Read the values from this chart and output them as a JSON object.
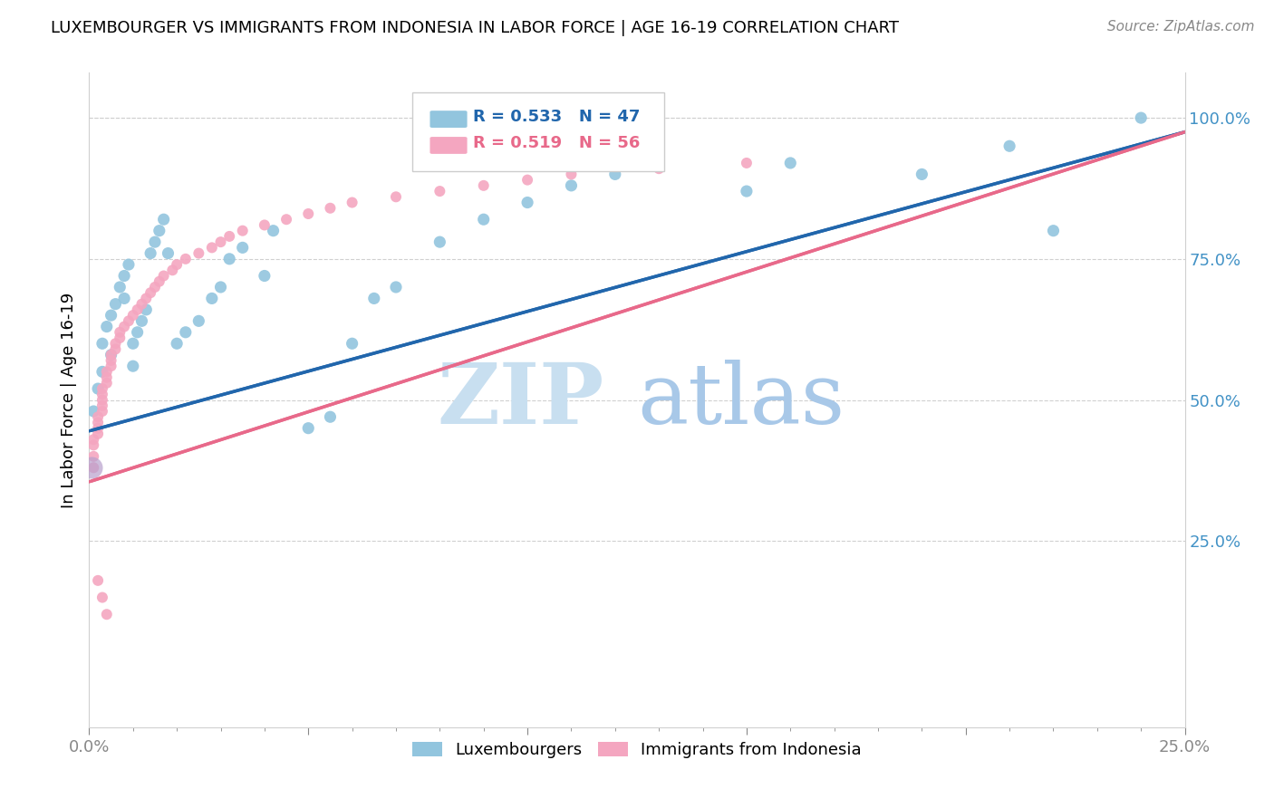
{
  "title": "LUXEMBOURGER VS IMMIGRANTS FROM INDONESIA IN LABOR FORCE | AGE 16-19 CORRELATION CHART",
  "source": "Source: ZipAtlas.com",
  "ylabel_label": "In Labor Force | Age 16-19",
  "legend_label1": "Luxembourgers",
  "legend_label2": "Immigrants from Indonesia",
  "R1": 0.533,
  "N1": 47,
  "R2": 0.519,
  "N2": 56,
  "color_blue": "#92c5de",
  "color_pink": "#f4a6c0",
  "line_blue": "#2166ac",
  "line_pink": "#e8698a",
  "watermark_zip": "ZIP",
  "watermark_atlas": "atlas",
  "watermark_color_zip": "#c8dff0",
  "watermark_color_atlas": "#a8c8e8",
  "xlim": [
    0.0,
    0.25
  ],
  "ylim": [
    -0.08,
    1.08
  ],
  "ytick_vals": [
    0.25,
    0.5,
    0.75,
    1.0
  ],
  "ytick_labels": [
    "25.0%",
    "50.0%",
    "75.0%",
    "100.0%"
  ],
  "xtick_vals": [
    0.0,
    0.05,
    0.1,
    0.15,
    0.2,
    0.25
  ],
  "xtick_labels": [
    "0.0%",
    "",
    "",
    "",
    "",
    "25.0%"
  ],
  "blue_x": [
    0.001,
    0.002,
    0.003,
    0.003,
    0.004,
    0.005,
    0.005,
    0.006,
    0.007,
    0.008,
    0.008,
    0.009,
    0.01,
    0.01,
    0.011,
    0.012,
    0.013,
    0.014,
    0.015,
    0.016,
    0.017,
    0.018,
    0.02,
    0.022,
    0.025,
    0.028,
    0.03,
    0.032,
    0.035,
    0.04,
    0.042,
    0.05,
    0.055,
    0.06,
    0.065,
    0.07,
    0.08,
    0.09,
    0.1,
    0.11,
    0.12,
    0.15,
    0.16,
    0.19,
    0.21,
    0.22,
    0.24
  ],
  "blue_y": [
    0.48,
    0.52,
    0.55,
    0.6,
    0.63,
    0.65,
    0.58,
    0.67,
    0.7,
    0.72,
    0.68,
    0.74,
    0.56,
    0.6,
    0.62,
    0.64,
    0.66,
    0.76,
    0.78,
    0.8,
    0.82,
    0.76,
    0.6,
    0.62,
    0.64,
    0.68,
    0.7,
    0.75,
    0.77,
    0.72,
    0.8,
    0.45,
    0.47,
    0.6,
    0.68,
    0.7,
    0.78,
    0.82,
    0.85,
    0.88,
    0.9,
    0.87,
    0.92,
    0.9,
    0.95,
    0.8,
    1.0
  ],
  "pink_x": [
    0.001,
    0.001,
    0.001,
    0.001,
    0.002,
    0.002,
    0.002,
    0.002,
    0.003,
    0.003,
    0.003,
    0.003,
    0.003,
    0.004,
    0.004,
    0.004,
    0.005,
    0.005,
    0.005,
    0.006,
    0.006,
    0.007,
    0.007,
    0.008,
    0.009,
    0.01,
    0.011,
    0.012,
    0.013,
    0.014,
    0.015,
    0.016,
    0.017,
    0.019,
    0.02,
    0.022,
    0.025,
    0.028,
    0.03,
    0.032,
    0.035,
    0.04,
    0.045,
    0.05,
    0.055,
    0.06,
    0.07,
    0.08,
    0.09,
    0.1,
    0.11,
    0.13,
    0.15,
    0.002,
    0.003,
    0.004
  ],
  "pink_y": [
    0.38,
    0.4,
    0.42,
    0.43,
    0.44,
    0.45,
    0.46,
    0.47,
    0.48,
    0.49,
    0.5,
    0.51,
    0.52,
    0.53,
    0.54,
    0.55,
    0.56,
    0.57,
    0.58,
    0.59,
    0.6,
    0.61,
    0.62,
    0.63,
    0.64,
    0.65,
    0.66,
    0.67,
    0.68,
    0.69,
    0.7,
    0.71,
    0.72,
    0.73,
    0.74,
    0.75,
    0.76,
    0.77,
    0.78,
    0.79,
    0.8,
    0.81,
    0.82,
    0.83,
    0.84,
    0.85,
    0.86,
    0.87,
    0.88,
    0.89,
    0.9,
    0.91,
    0.92,
    0.18,
    0.15,
    0.12
  ],
  "blue_line_x0": 0.0,
  "blue_line_y0": 0.445,
  "blue_line_x1": 0.25,
  "blue_line_y1": 0.975,
  "pink_line_x0": 0.0,
  "pink_line_y0": 0.355,
  "pink_line_x1": 0.25,
  "pink_line_y1": 0.975
}
